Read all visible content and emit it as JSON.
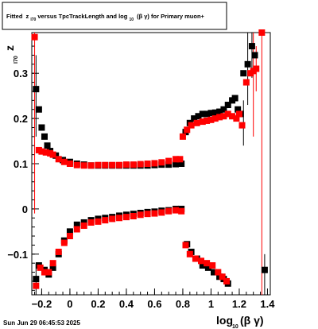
{
  "title": {
    "prefix": "Fitted ",
    "z_main": "z",
    "z_sub": "I70",
    "middle": " versus TpcTrackLength and log",
    "log_sub": "10",
    "paren": "(β γ)",
    "suffix": " for Primary muon+"
  },
  "footer": "Sun Jun 29 06:45:53 2025",
  "chart_data": {
    "type": "scatter",
    "title": "Fitted z_I70 versus TpcTrackLength and log10(β γ) for Primary muon+",
    "xlabel": {
      "main": "log",
      "sub": "10",
      "tail": "(β γ)"
    },
    "ylabel": {
      "main": "z",
      "sub": "I70"
    },
    "xlim": [
      -0.27,
      1.42
    ],
    "ylim": [
      -0.19,
      0.39
    ],
    "x_ticks": [
      {
        "value": -0.2,
        "label": "−0.2"
      },
      {
        "value": 0,
        "label": "0"
      },
      {
        "value": 0.2,
        "label": "0.2"
      },
      {
        "value": 0.4,
        "label": "0.4"
      },
      {
        "value": 0.6,
        "label": "0.6"
      },
      {
        "value": 0.8,
        "label": "0.8"
      },
      {
        "value": 1.0,
        "label": "1"
      },
      {
        "value": 1.2,
        "label": "1.2"
      },
      {
        "value": 1.4,
        "label": "1.4"
      }
    ],
    "y_ticks": [
      {
        "value": -0.1,
        "label": "−0.1"
      },
      {
        "value": 0,
        "label": "0"
      },
      {
        "value": 0.1,
        "label": "0.1"
      },
      {
        "value": 0.2,
        "label": "0.2"
      },
      {
        "value": 0.3,
        "label": "0.3"
      }
    ],
    "grid": false,
    "colors": {
      "series_black": "#000000",
      "series_red": "#ff0000"
    },
    "series": [
      {
        "color": "#000000",
        "marker": "square",
        "points": [
          [
            -0.24,
            0.265
          ],
          [
            -0.22,
            0.22
          ],
          [
            -0.2,
            0.18
          ],
          [
            -0.18,
            0.16
          ],
          [
            -0.16,
            0.14
          ],
          [
            -0.14,
            0.128
          ],
          [
            -0.1,
            0.118
          ],
          [
            -0.05,
            0.108
          ],
          [
            0.0,
            0.104
          ],
          [
            0.05,
            0.1
          ],
          [
            0.1,
            0.098
          ],
          [
            0.15,
            0.096
          ],
          [
            0.2,
            0.096
          ],
          [
            0.25,
            0.096
          ],
          [
            0.3,
            0.096
          ],
          [
            0.35,
            0.096
          ],
          [
            0.4,
            0.096
          ],
          [
            0.45,
            0.096
          ],
          [
            0.5,
            0.096
          ],
          [
            0.55,
            0.096
          ],
          [
            0.6,
            0.097
          ],
          [
            0.65,
            0.098
          ],
          [
            0.7,
            0.098
          ],
          [
            0.75,
            0.099
          ],
          [
            0.79,
            0.1
          ],
          [
            0.82,
            0.17
          ],
          [
            0.85,
            0.19
          ],
          [
            0.88,
            0.2
          ],
          [
            0.91,
            0.205
          ],
          [
            0.94,
            0.21
          ],
          [
            0.97,
            0.21
          ],
          [
            1.0,
            0.212
          ],
          [
            1.03,
            0.213
          ],
          [
            1.06,
            0.215
          ],
          [
            1.09,
            0.22
          ],
          [
            1.12,
            0.23
          ],
          [
            1.15,
            0.24
          ],
          [
            1.17,
            0.245
          ],
          [
            1.19,
            0.22
          ],
          [
            1.21,
            0.21
          ],
          [
            1.23,
            0.3
          ],
          [
            1.26,
            0.32
          ],
          [
            1.29,
            0.36
          ],
          [
            1.31,
            0.34
          ],
          [
            -0.24,
            -0.155
          ],
          [
            -0.22,
            -0.125
          ],
          [
            -0.18,
            -0.135
          ],
          [
            -0.15,
            -0.145
          ],
          [
            -0.12,
            -0.13
          ],
          [
            -0.08,
            -0.1
          ],
          [
            -0.04,
            -0.07
          ],
          [
            0.0,
            -0.05
          ],
          [
            0.05,
            -0.035
          ],
          [
            0.1,
            -0.03
          ],
          [
            0.15,
            -0.025
          ],
          [
            0.2,
            -0.022
          ],
          [
            0.25,
            -0.02
          ],
          [
            0.3,
            -0.018
          ],
          [
            0.35,
            -0.015
          ],
          [
            0.4,
            -0.013
          ],
          [
            0.45,
            -0.011
          ],
          [
            0.5,
            -0.009
          ],
          [
            0.55,
            -0.007
          ],
          [
            0.6,
            -0.006
          ],
          [
            0.65,
            -0.004
          ],
          [
            0.7,
            -0.003
          ],
          [
            0.75,
            0.0
          ],
          [
            0.79,
            0.0
          ],
          [
            0.83,
            -0.078
          ],
          [
            0.86,
            -0.095
          ],
          [
            0.9,
            -0.11
          ],
          [
            0.94,
            -0.125
          ],
          [
            0.98,
            -0.13
          ],
          [
            1.02,
            -0.14
          ],
          [
            1.06,
            -0.15
          ],
          [
            1.09,
            -0.155
          ],
          [
            1.12,
            -0.165
          ],
          [
            1.38,
            -0.135
          ]
        ]
      },
      {
        "color": "#ff0000",
        "marker": "square",
        "points": [
          [
            -0.25,
            0.38
          ],
          [
            -0.22,
            0.13
          ],
          [
            -0.2,
            0.127
          ],
          [
            -0.17,
            0.125
          ],
          [
            -0.14,
            0.123
          ],
          [
            -0.12,
            0.12
          ],
          [
            -0.08,
            0.11
          ],
          [
            -0.04,
            0.104
          ],
          [
            0.0,
            0.1
          ],
          [
            0.05,
            0.097
          ],
          [
            0.1,
            0.096
          ],
          [
            0.15,
            0.096
          ],
          [
            0.2,
            0.097
          ],
          [
            0.25,
            0.097
          ],
          [
            0.3,
            0.097
          ],
          [
            0.35,
            0.097
          ],
          [
            0.4,
            0.098
          ],
          [
            0.45,
            0.098
          ],
          [
            0.5,
            0.099
          ],
          [
            0.55,
            0.1
          ],
          [
            0.6,
            0.101
          ],
          [
            0.65,
            0.103
          ],
          [
            0.7,
            0.106
          ],
          [
            0.75,
            0.11
          ],
          [
            0.78,
            0.11
          ],
          [
            0.8,
            0.16
          ],
          [
            0.83,
            0.175
          ],
          [
            0.86,
            0.185
          ],
          [
            0.9,
            0.19
          ],
          [
            0.94,
            0.193
          ],
          [
            0.97,
            0.195
          ],
          [
            1.0,
            0.197
          ],
          [
            1.03,
            0.2
          ],
          [
            1.06,
            0.203
          ],
          [
            1.09,
            0.205
          ],
          [
            1.12,
            0.21
          ],
          [
            1.15,
            0.205
          ],
          [
            1.18,
            0.2
          ],
          [
            1.2,
            0.21
          ],
          [
            1.22,
            0.185
          ],
          [
            1.25,
            0.28
          ],
          [
            1.28,
            0.3
          ],
          [
            1.3,
            0.305
          ],
          [
            1.32,
            0.31
          ],
          [
            1.36,
            0.39
          ],
          [
            -0.24,
            -0.17
          ],
          [
            -0.21,
            -0.13
          ],
          [
            -0.18,
            -0.14
          ],
          [
            -0.15,
            -0.14
          ],
          [
            -0.12,
            -0.12
          ],
          [
            -0.08,
            -0.095
          ],
          [
            -0.04,
            -0.075
          ],
          [
            0.0,
            -0.06
          ],
          [
            0.05,
            -0.045
          ],
          [
            0.1,
            -0.037
          ],
          [
            0.15,
            -0.03
          ],
          [
            0.2,
            -0.028
          ],
          [
            0.25,
            -0.025
          ],
          [
            0.3,
            -0.022
          ],
          [
            0.35,
            -0.02
          ],
          [
            0.4,
            -0.018
          ],
          [
            0.45,
            -0.016
          ],
          [
            0.5,
            -0.013
          ],
          [
            0.55,
            -0.011
          ],
          [
            0.6,
            -0.01
          ],
          [
            0.65,
            -0.008
          ],
          [
            0.7,
            -0.005
          ],
          [
            0.75,
            -0.003
          ],
          [
            0.79,
            -0.005
          ],
          [
            0.82,
            -0.08
          ],
          [
            0.85,
            -0.1
          ],
          [
            0.89,
            -0.11
          ],
          [
            0.93,
            -0.115
          ],
          [
            0.97,
            -0.12
          ],
          [
            1.01,
            -0.125
          ],
          [
            1.05,
            -0.14
          ],
          [
            1.08,
            -0.15
          ],
          [
            1.11,
            -0.16
          ]
        ]
      }
    ],
    "error_bars": [
      {
        "x": -0.25,
        "y_low": -0.01,
        "y_high": 0.39,
        "color": "#ff0000"
      },
      {
        "x": -0.24,
        "y_low": 0.16,
        "y_high": 0.34,
        "color": "#000000"
      },
      {
        "x": -0.24,
        "y_low": -0.19,
        "y_high": -0.12,
        "color": "#000000"
      },
      {
        "x": 1.23,
        "y_low": 0.14,
        "y_high": 0.24,
        "color": "#000000"
      },
      {
        "x": 1.26,
        "y_low": 0.23,
        "y_high": 0.39,
        "color": "#000000"
      },
      {
        "x": 1.29,
        "y_low": 0.29,
        "y_high": 0.39,
        "color": "#000000"
      },
      {
        "x": 1.3,
        "y_low": 0.16,
        "y_high": 0.39,
        "color": "#ff0000"
      },
      {
        "x": 1.32,
        "y_low": 0.26,
        "y_high": 0.36,
        "color": "#ff0000"
      },
      {
        "x": 1.36,
        "y_low": -0.19,
        "y_high": 0.39,
        "color": "#ff0000"
      },
      {
        "x": 1.38,
        "y_low": -0.19,
        "y_high": -0.1,
        "color": "#000000"
      }
    ]
  }
}
